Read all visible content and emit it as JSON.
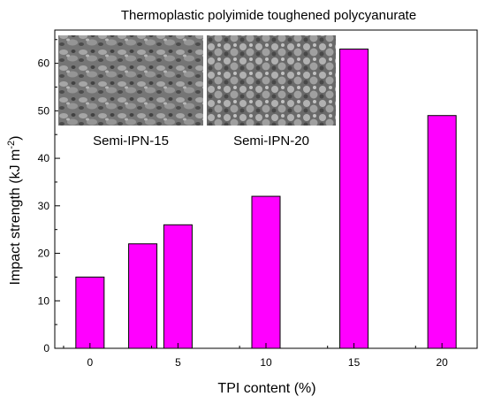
{
  "chart_data": {
    "type": "bar",
    "title": "Thermoplastic polyimide toughened polycyanurate",
    "xlabel": "TPI content (%)",
    "ylabel": "Impact strength (kJ m",
    "ylabel_superscript": "-2",
    "ylabel_suffix": ")",
    "x": [
      0,
      3,
      5,
      10,
      15,
      20
    ],
    "values": [
      15,
      22,
      26,
      32,
      63,
      49
    ],
    "xlim": [
      -2,
      22
    ],
    "ylim": [
      0,
      67
    ],
    "x_ticks": [
      0,
      5,
      10,
      15,
      20
    ],
    "y_ticks": [
      0,
      10,
      20,
      30,
      40,
      50,
      60
    ],
    "grid": false,
    "bar_color": "#ff00ff",
    "insets": [
      {
        "label": "Semi-IPN-15"
      },
      {
        "label": "Semi-IPN-20"
      }
    ]
  }
}
